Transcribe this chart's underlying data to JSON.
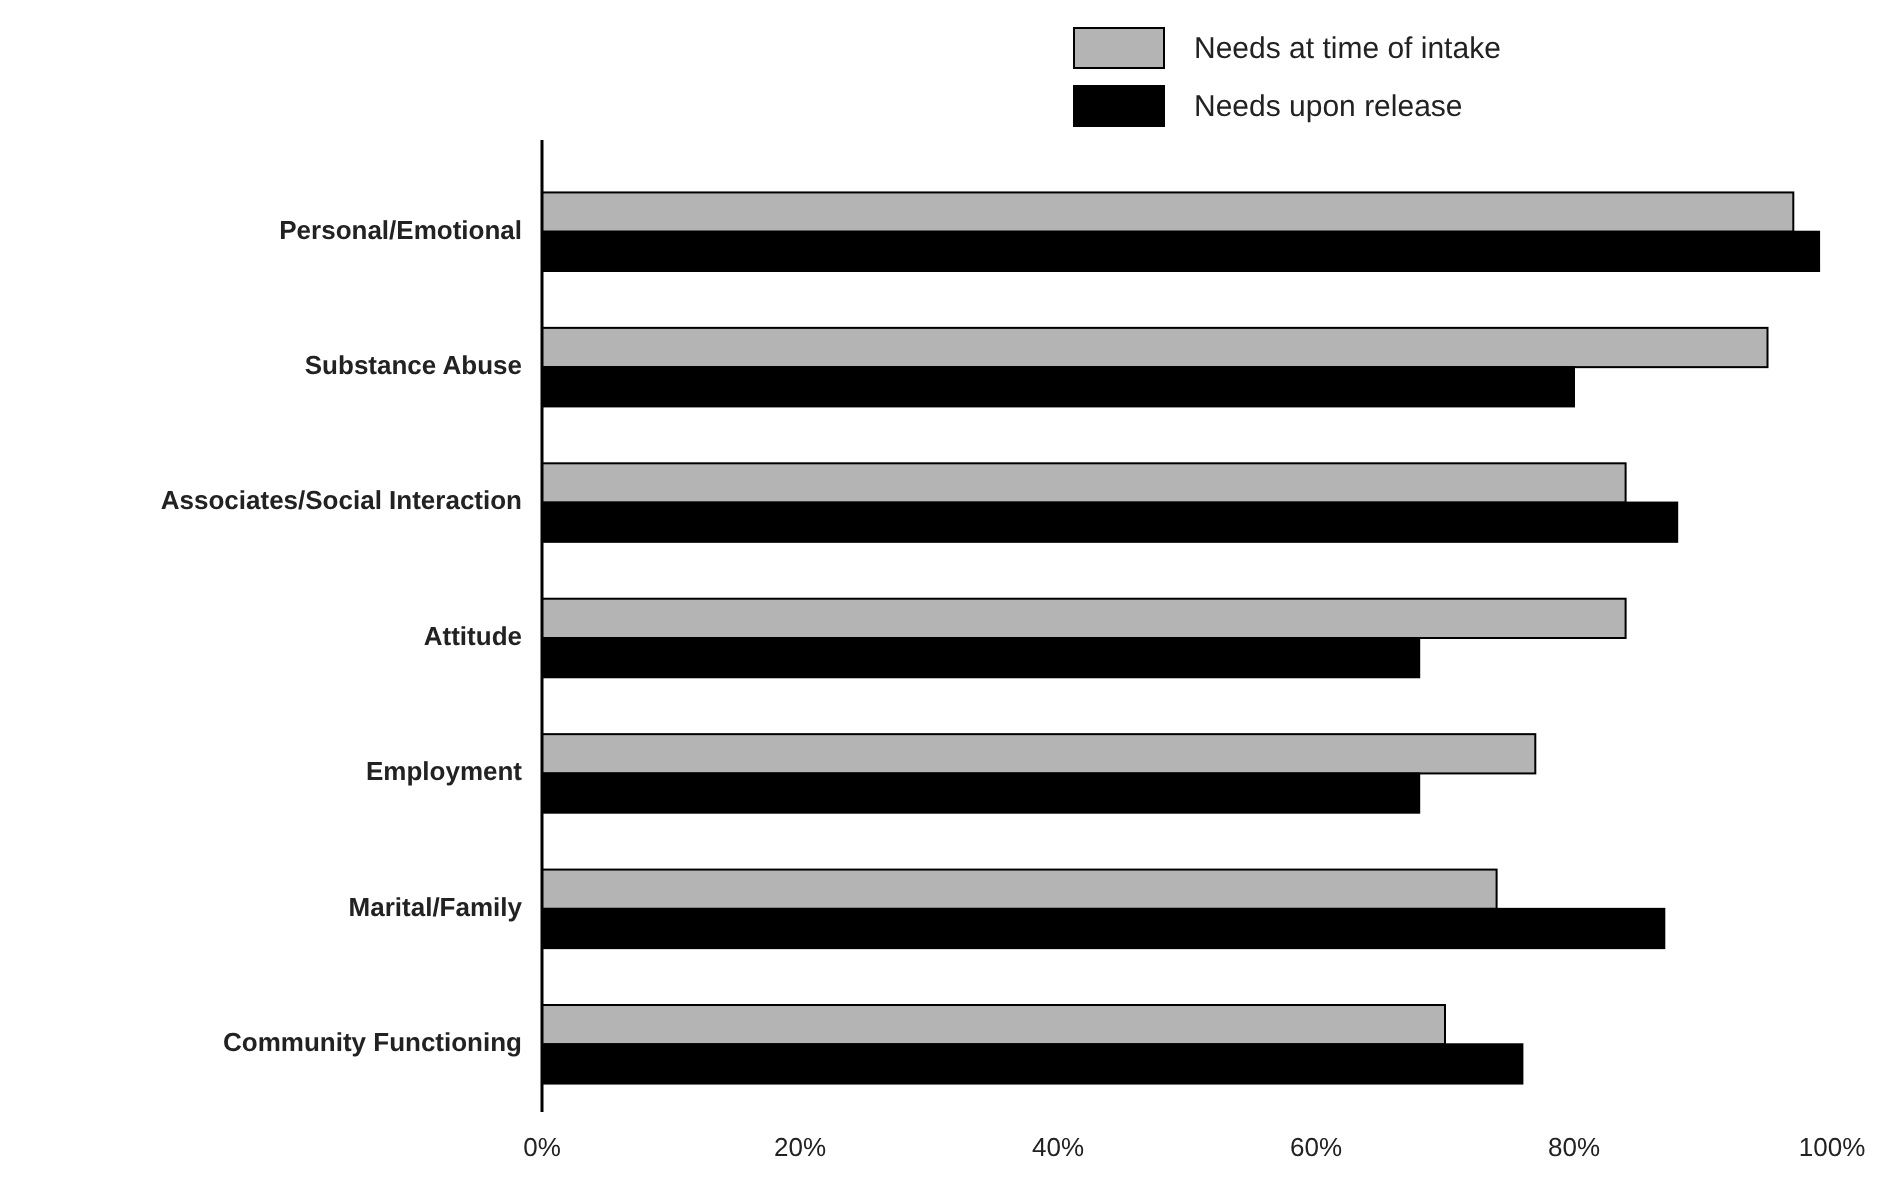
{
  "chart_data": {
    "type": "bar",
    "orientation": "horizontal",
    "categories": [
      "Personal/Emotional",
      "Substance Abuse",
      "Associates/Social Interaction",
      "Attitude",
      "Employment",
      "Marital/Family",
      "Community Functioning"
    ],
    "series": [
      {
        "name": "Needs at time of intake",
        "color": "#b4b4b4",
        "values": [
          97,
          95,
          84,
          84,
          77,
          74,
          70
        ]
      },
      {
        "name": "Needs upon release",
        "color": "#000000",
        "values": [
          99,
          80,
          88,
          68,
          68,
          87,
          76
        ]
      }
    ],
    "xlim": [
      0,
      100
    ],
    "xticks": [
      {
        "value": 0,
        "label": "0%"
      },
      {
        "value": 20,
        "label": "20%"
      },
      {
        "value": 40,
        "label": "40%"
      },
      {
        "value": 60,
        "label": "60%"
      },
      {
        "value": 80,
        "label": "80%"
      },
      {
        "value": 100,
        "label": "100%"
      }
    ],
    "grid": false,
    "legend": "top right"
  }
}
